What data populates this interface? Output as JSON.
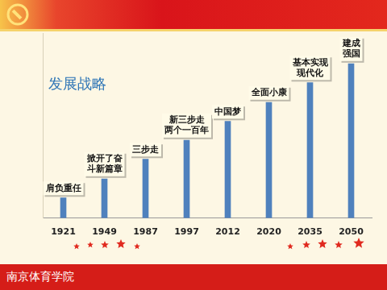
{
  "footer": "南京体育学院",
  "chart_data": {
    "type": "bar",
    "title": "发展战略",
    "categories": [
      "1921",
      "1949",
      "1987",
      "1997",
      "2012",
      "2020",
      "2035",
      "2050"
    ],
    "values": [
      25,
      48,
      72,
      95,
      118,
      141,
      165,
      188
    ],
    "annotations": [
      "肩负重任",
      "掀开了奋\n斗新篇章",
      "三步走",
      "新三步走\n两个一百年",
      "中国梦",
      "全面小康",
      "基本实现\n现代化",
      "建成\n强国"
    ],
    "color": "#4f81bd",
    "ylim": [
      0,
      225
    ],
    "tick_labels": "x",
    "grid": false
  }
}
